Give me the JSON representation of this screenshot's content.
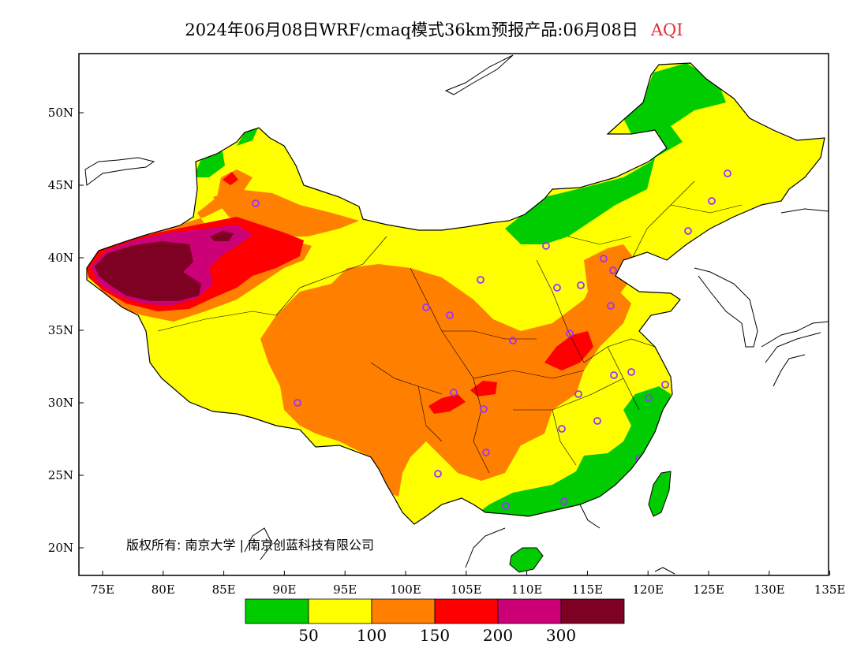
{
  "title": {
    "main": "2024年06月08日WRF/cmaq模式36km预报产品:06月08日",
    "product": "AQI"
  },
  "map": {
    "lon_labels": [
      "75E",
      "80E",
      "85E",
      "90E",
      "95E",
      "100E",
      "105E",
      "110E",
      "115E",
      "120E",
      "125E",
      "130E",
      "135E"
    ],
    "lat_labels": [
      "50N",
      "45N",
      "40N",
      "35N",
      "30N",
      "25N",
      "20N"
    ],
    "copyright": "版权所有: 南京大学 | 南京创蓝科技有限公司"
  },
  "colorbar": {
    "colors": [
      "#00cc00",
      "#ffff00",
      "#ff7f00",
      "#ff0000",
      "#cc0077",
      "#7e0023"
    ],
    "labels": [
      "50",
      "100",
      "150",
      "200",
      "300"
    ]
  },
  "city_marker_color": "#9933ff"
}
